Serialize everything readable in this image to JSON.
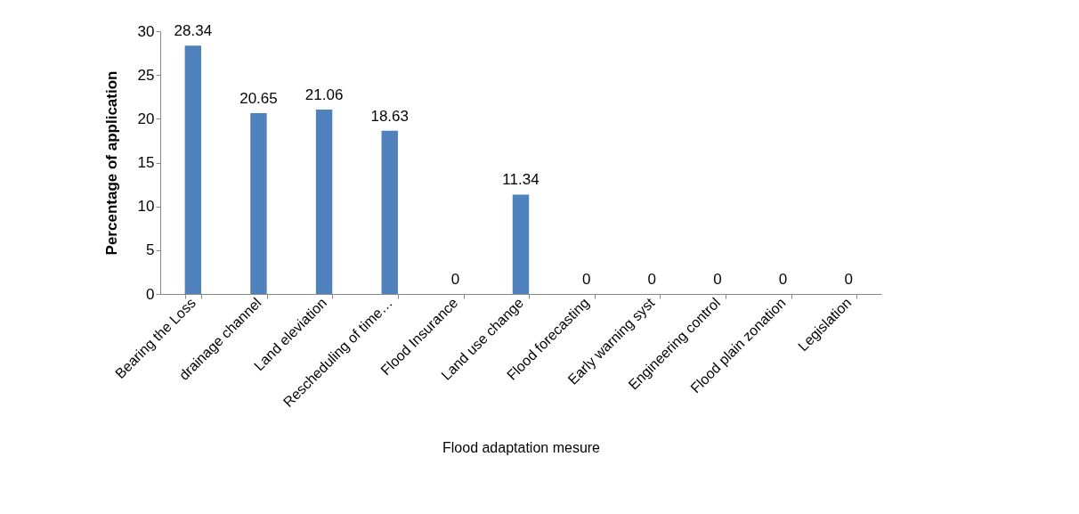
{
  "chart_data": {
    "type": "bar",
    "xlabel": "Flood adaptation mesure",
    "ylabel": "Percentage of application",
    "categories": [
      "Bearing the Loss",
      "drainage channel",
      "Land eleviation",
      "Rescheduling of time…",
      "Flood Insurance",
      "Land use change",
      "Flood forecasting",
      "Early warning syst",
      "Engineering control",
      "Flood plain zonation",
      "Legislation"
    ],
    "values": [
      28.34,
      20.65,
      21.06,
      18.63,
      0,
      11.34,
      0,
      0,
      0,
      0,
      0
    ],
    "color": "#4f81bd",
    "ylim": [
      0,
      30
    ],
    "yticks": [
      0,
      5,
      10,
      15,
      20,
      25,
      30
    ],
    "data_labels": true
  }
}
